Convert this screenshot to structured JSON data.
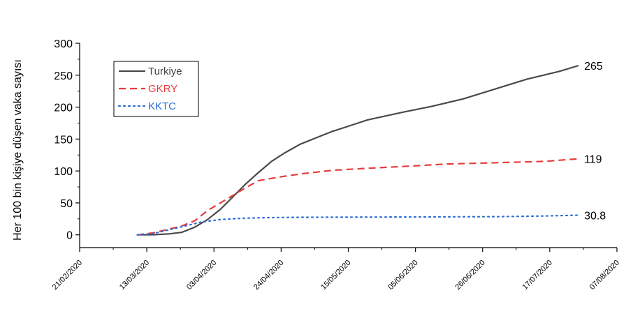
{
  "chart_data": {
    "type": "line",
    "title": "",
    "xlabel": "",
    "ylabel": "Her 100 bin kişiye düşen vaka sayısı",
    "x_ticks": [
      "21/02/2020",
      "13/03/2020",
      "03/04/2020",
      "24/04/2020",
      "15/05/2020",
      "05/06/2020",
      "26/06/2020",
      "17/07/2020",
      "07/08/2020"
    ],
    "y_ticks": [
      0,
      50,
      100,
      150,
      200,
      250,
      300
    ],
    "xlim": [
      "21/02/2020",
      "07/08/2020"
    ],
    "ylim": [
      -20,
      300
    ],
    "grid": false,
    "legend_position": "top-left",
    "series": [
      {
        "name": "Turkiye",
        "color": "#4a4a4a",
        "style": "solid",
        "end_label": "265",
        "points": [
          [
            "10/03/2020",
            0
          ],
          [
            "15/03/2020",
            0.2
          ],
          [
            "20/03/2020",
            1.5
          ],
          [
            "24/03/2020",
            4
          ],
          [
            "28/03/2020",
            12
          ],
          [
            "01/04/2020",
            24
          ],
          [
            "05/04/2020",
            40
          ],
          [
            "09/04/2020",
            60
          ],
          [
            "13/04/2020",
            80
          ],
          [
            "17/04/2020",
            98
          ],
          [
            "21/04/2020",
            115
          ],
          [
            "25/04/2020",
            128
          ],
          [
            "30/04/2020",
            142
          ],
          [
            "05/05/2020",
            152
          ],
          [
            "10/05/2020",
            162
          ],
          [
            "15/05/2020",
            170
          ],
          [
            "21/05/2020",
            180
          ],
          [
            "01/06/2020",
            192
          ],
          [
            "10/06/2020",
            201
          ],
          [
            "20/06/2020",
            213
          ],
          [
            "01/07/2020",
            230
          ],
          [
            "10/07/2020",
            244
          ],
          [
            "20/07/2020",
            256
          ],
          [
            "26/07/2020",
            265
          ]
        ]
      },
      {
        "name": "GKRY",
        "color": "#e83c3c",
        "style": "dashed",
        "end_label": "119",
        "points": [
          [
            "10/03/2020",
            0
          ],
          [
            "15/03/2020",
            3
          ],
          [
            "20/03/2020",
            9
          ],
          [
            "24/03/2020",
            14
          ],
          [
            "28/03/2020",
            22
          ],
          [
            "01/04/2020",
            38
          ],
          [
            "05/04/2020",
            50
          ],
          [
            "09/04/2020",
            62
          ],
          [
            "13/04/2020",
            74
          ],
          [
            "17/04/2020",
            85
          ],
          [
            "24/04/2020",
            91
          ],
          [
            "01/05/2020",
            96
          ],
          [
            "10/05/2020",
            101
          ],
          [
            "20/05/2020",
            104
          ],
          [
            "01/06/2020",
            107
          ],
          [
            "15/06/2020",
            111
          ],
          [
            "01/07/2020",
            113
          ],
          [
            "15/07/2020",
            115
          ],
          [
            "26/07/2020",
            119
          ]
        ]
      },
      {
        "name": "KKTC",
        "color": "#2b6fd6",
        "style": "dotted",
        "end_label": "30.8",
        "points": [
          [
            "10/03/2020",
            0
          ],
          [
            "15/03/2020",
            2
          ],
          [
            "20/03/2020",
            8
          ],
          [
            "25/03/2020",
            14
          ],
          [
            "30/03/2020",
            20
          ],
          [
            "05/04/2020",
            24
          ],
          [
            "12/04/2020",
            26
          ],
          [
            "20/04/2020",
            27
          ],
          [
            "01/05/2020",
            27.5
          ],
          [
            "01/06/2020",
            28
          ],
          [
            "01/07/2020",
            28.5
          ],
          [
            "15/07/2020",
            29.5
          ],
          [
            "26/07/2020",
            30.8
          ]
        ]
      }
    ]
  }
}
